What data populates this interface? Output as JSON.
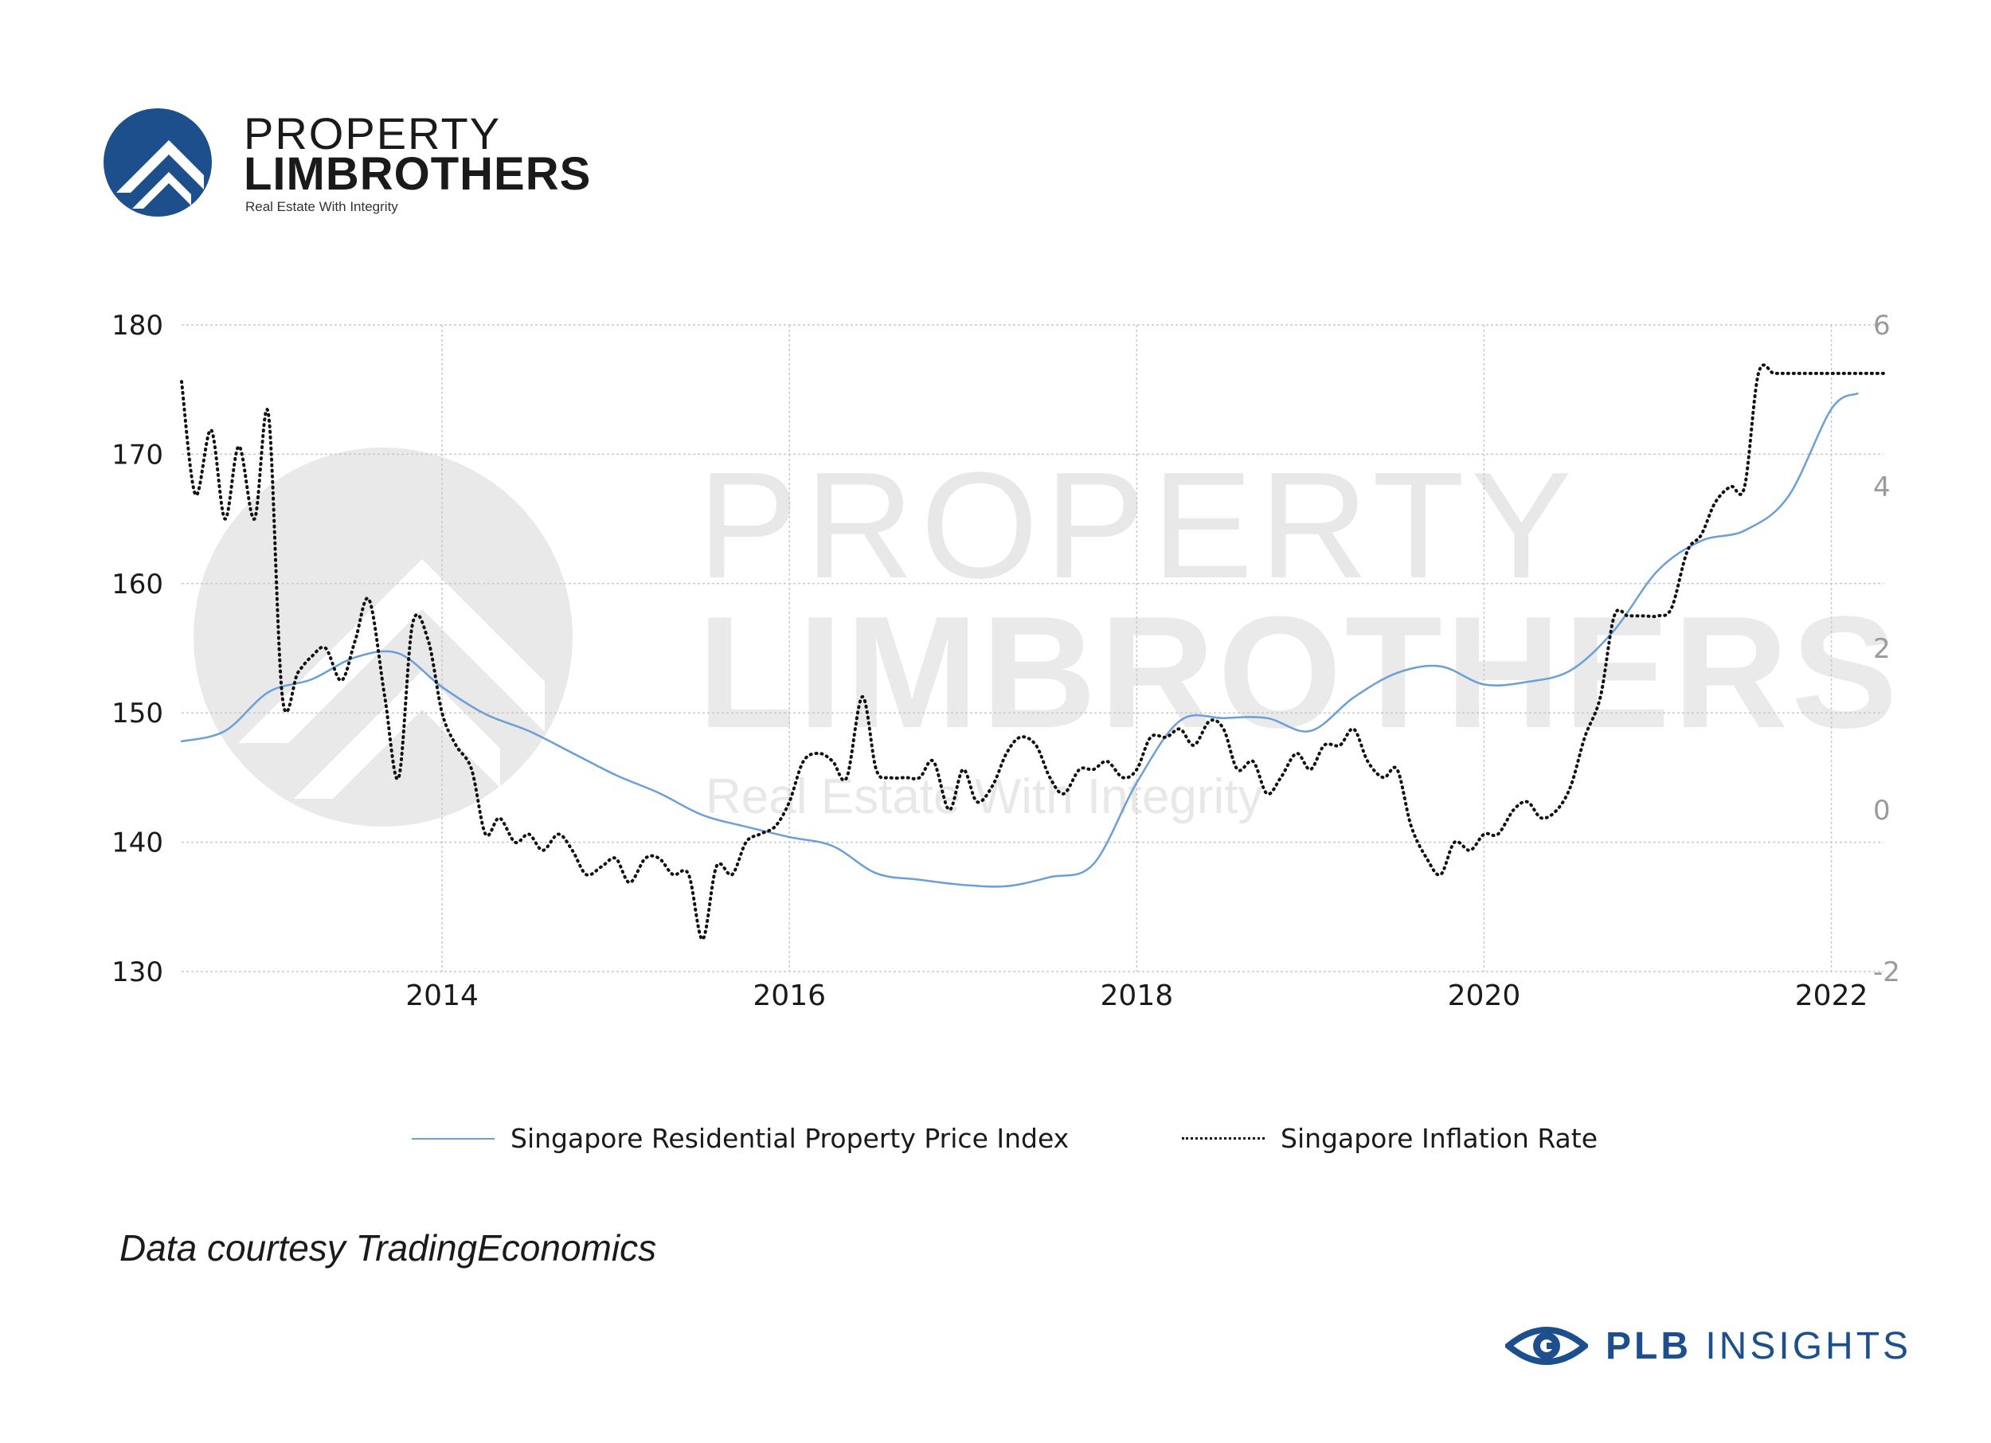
{
  "brand": {
    "line1": "PROPERTY",
    "line2": "LIMBROTHERS",
    "tagline": "Real Estate With Integrity",
    "color": "#1c4f8c"
  },
  "watermark": {
    "line1": "PROPERTY",
    "line2": "LIMBROTHERS",
    "tagline": "Real Estate With Integrity"
  },
  "source_note": "Data courtesy TradingEconomics",
  "insights": {
    "bold": "PLB",
    "rest": " INSIGHTS",
    "icon": "eye-icon",
    "color": "#1c4f8c"
  },
  "chart_data": {
    "type": "line",
    "title": "",
    "x_ticks": [
      "2014",
      "2016",
      "2018",
      "2020",
      "2022"
    ],
    "x_range": [
      2012.5,
      2022.3
    ],
    "left_axis": {
      "ticks": [
        "130",
        "140",
        "150",
        "160",
        "170",
        "180"
      ],
      "range": [
        130,
        180
      ]
    },
    "right_axis": {
      "ticks": [
        "-2",
        "0",
        "2",
        "4",
        "6"
      ],
      "range": [
        -2,
        6
      ]
    },
    "grid": true,
    "legend_position": "bottom",
    "series": [
      {
        "name": "Singapore Residential Property Price Index",
        "axis": "left",
        "color": "#6a9fd8",
        "style": "solid",
        "x": [
          2012.5,
          2012.75,
          2013.0,
          2013.25,
          2013.5,
          2013.75,
          2014.0,
          2014.25,
          2014.5,
          2014.75,
          2015.0,
          2015.25,
          2015.5,
          2015.75,
          2016.0,
          2016.25,
          2016.5,
          2016.75,
          2017.0,
          2017.25,
          2017.5,
          2017.75,
          2018.0,
          2018.25,
          2018.5,
          2018.75,
          2019.0,
          2019.25,
          2019.5,
          2019.75,
          2020.0,
          2020.25,
          2020.5,
          2020.75,
          2021.0,
          2021.25,
          2021.5,
          2021.75,
          2022.0,
          2022.15
        ],
        "values": [
          147.8,
          148.6,
          151.6,
          152.6,
          154.3,
          154.6,
          152.0,
          149.9,
          148.6,
          146.9,
          145.2,
          143.8,
          142.1,
          141.2,
          140.4,
          139.7,
          137.6,
          137.1,
          136.7,
          136.6,
          137.3,
          138.3,
          144.6,
          149.4,
          149.6,
          149.6,
          148.6,
          151.2,
          153.1,
          153.6,
          152.2,
          152.4,
          153.3,
          156.4,
          161.0,
          163.3,
          164.1,
          166.7,
          173.5,
          174.7
        ]
      },
      {
        "name": "Singapore Inflation Rate",
        "axis": "right",
        "color": "#111111",
        "style": "dotted",
        "x": [
          2012.5,
          2012.58,
          2012.67,
          2012.75,
          2012.83,
          2012.92,
          2013.0,
          2013.08,
          2013.17,
          2013.25,
          2013.33,
          2013.42,
          2013.5,
          2013.58,
          2013.67,
          2013.75,
          2013.83,
          2013.92,
          2014.0,
          2014.08,
          2014.17,
          2014.25,
          2014.33,
          2014.42,
          2014.5,
          2014.58,
          2014.67,
          2014.75,
          2014.83,
          2014.92,
          2015.0,
          2015.08,
          2015.17,
          2015.25,
          2015.33,
          2015.42,
          2015.5,
          2015.58,
          2015.67,
          2015.75,
          2015.83,
          2015.92,
          2016.0,
          2016.08,
          2016.17,
          2016.25,
          2016.33,
          2016.42,
          2016.5,
          2016.58,
          2016.67,
          2016.75,
          2016.83,
          2016.92,
          2017.0,
          2017.08,
          2017.17,
          2017.25,
          2017.33,
          2017.42,
          2017.5,
          2017.58,
          2017.67,
          2017.75,
          2017.83,
          2017.92,
          2018.0,
          2018.08,
          2018.17,
          2018.25,
          2018.33,
          2018.42,
          2018.5,
          2018.58,
          2018.67,
          2018.75,
          2018.83,
          2018.92,
          2019.0,
          2019.08,
          2019.17,
          2019.25,
          2019.33,
          2019.42,
          2019.5,
          2019.58,
          2019.67,
          2019.75,
          2019.83,
          2019.92,
          2020.0,
          2020.08,
          2020.17,
          2020.25,
          2020.33,
          2020.42,
          2020.5,
          2020.58,
          2020.67,
          2020.75,
          2020.83,
          2020.92,
          2021.0,
          2021.08,
          2021.17,
          2021.25,
          2021.33,
          2021.42,
          2021.5,
          2021.58,
          2021.67,
          2021.75,
          2021.83,
          2021.92,
          2022.0,
          2022.08,
          2022.17,
          2022.25,
          2022.3
        ],
        "values": [
          5.3,
          3.9,
          4.7,
          3.6,
          4.5,
          3.6,
          4.9,
          1.4,
          1.7,
          1.9,
          2.0,
          1.6,
          2.1,
          2.6,
          1.4,
          0.4,
          2.3,
          2.1,
          1.2,
          0.8,
          0.5,
          -0.3,
          -0.1,
          -0.4,
          -0.3,
          -0.5,
          -0.3,
          -0.5,
          -0.8,
          -0.7,
          -0.6,
          -0.9,
          -0.6,
          -0.6,
          -0.8,
          -0.8,
          -1.6,
          -0.7,
          -0.8,
          -0.4,
          -0.3,
          -0.2,
          0.1,
          0.6,
          0.7,
          0.6,
          0.4,
          1.4,
          0.5,
          0.4,
          0.4,
          0.4,
          0.6,
          0.0,
          0.5,
          0.1,
          0.3,
          0.7,
          0.9,
          0.8,
          0.4,
          0.2,
          0.5,
          0.5,
          0.6,
          0.4,
          0.5,
          0.9,
          0.9,
          1.0,
          0.8,
          1.1,
          1.0,
          0.5,
          0.6,
          0.2,
          0.4,
          0.7,
          0.5,
          0.8,
          0.8,
          1.0,
          0.6,
          0.4,
          0.5,
          -0.2,
          -0.6,
          -0.8,
          -0.4,
          -0.5,
          -0.3,
          -0.3,
          0.0,
          0.1,
          -0.1,
          0.0,
          0.3,
          0.9,
          1.4,
          2.4,
          2.4,
          2.4,
          2.4,
          2.5,
          3.2,
          3.4,
          3.8,
          4.0,
          4.0,
          5.4,
          5.4,
          5.4,
          5.4,
          5.4,
          5.4,
          5.4,
          5.4,
          5.4,
          5.4
        ]
      }
    ]
  }
}
